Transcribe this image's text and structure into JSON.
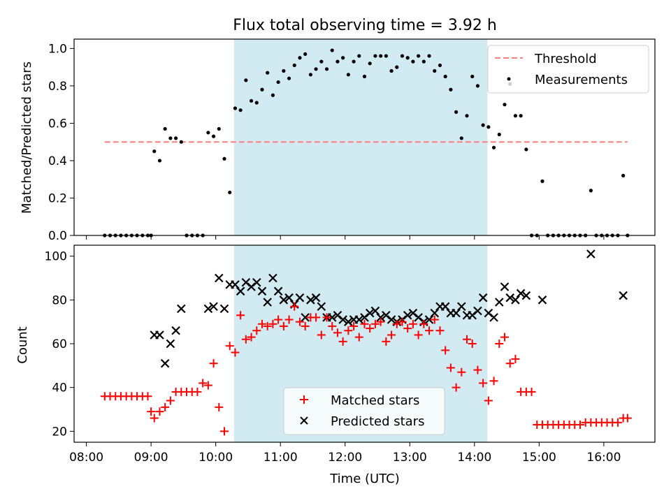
{
  "title": "Flux total observing time = 3.92 h",
  "colors": {
    "shade": "#add8e6",
    "threshold": "#ff7f7f",
    "measurement": "#000000",
    "matched": "#ff0000",
    "predicted": "#000000"
  },
  "chart_data": [
    {
      "type": "scatter",
      "name": "ratio-panel",
      "ylabel": "Matched/Predicted stars",
      "xlim": [
        7.81,
        16.79
      ],
      "ylim": [
        0,
        1.05
      ],
      "yticks": [
        0.0,
        0.2,
        0.4,
        0.6,
        0.8,
        1.0
      ],
      "ytick_labels": [
        "0.0",
        "0.2",
        "0.4",
        "0.6",
        "0.8",
        "1.0"
      ],
      "shaded_span": [
        "10:17",
        "14:12"
      ],
      "legend_position": "top-right",
      "threshold": {
        "name": "Threshold",
        "x": [
          "08:17",
          "16:22"
        ],
        "y": 0.5,
        "style": "dashed"
      },
      "series": [
        {
          "name": "Measurements",
          "marker": "dot",
          "x": [
            "08:17",
            "08:22",
            "08:27",
            "08:32",
            "08:37",
            "08:42",
            "08:47",
            "08:52",
            "08:57",
            "09:00",
            "09:03",
            "09:08",
            "09:13",
            "09:18",
            "09:23",
            "09:28",
            "09:33",
            "09:38",
            "09:43",
            "09:48",
            "09:53",
            "09:58",
            "10:03",
            "10:08",
            "10:13",
            "10:18",
            "10:23",
            "10:28",
            "10:33",
            "10:38",
            "10:43",
            "10:48",
            "10:53",
            "10:58",
            "11:03",
            "11:08",
            "11:13",
            "11:18",
            "11:23",
            "11:28",
            "11:33",
            "11:38",
            "11:43",
            "11:48",
            "11:53",
            "11:58",
            "12:03",
            "12:08",
            "12:13",
            "12:18",
            "12:23",
            "12:28",
            "12:33",
            "12:38",
            "12:43",
            "12:48",
            "12:53",
            "12:58",
            "13:03",
            "13:08",
            "13:13",
            "13:18",
            "13:23",
            "13:28",
            "13:33",
            "13:38",
            "13:43",
            "13:48",
            "13:53",
            "13:58",
            "14:03",
            "14:08",
            "14:13",
            "14:18",
            "14:23",
            "14:28",
            "14:33",
            "14:38",
            "14:43",
            "14:48",
            "14:53",
            "14:58",
            "15:03",
            "15:08",
            "15:13",
            "15:18",
            "15:23",
            "15:28",
            "15:33",
            "15:38",
            "15:43",
            "15:48",
            "15:53",
            "15:58",
            "16:03",
            "16:08",
            "16:13",
            "16:18",
            "16:22"
          ],
          "y": [
            0,
            0,
            0,
            0,
            0,
            0,
            0,
            0,
            0,
            0,
            0.45,
            0.4,
            0.57,
            0.52,
            0.52,
            0.5,
            0,
            0,
            0,
            0,
            0.55,
            0.53,
            0.57,
            0.41,
            0.23,
            0.68,
            0.67,
            0.83,
            0.72,
            0.71,
            0.78,
            0.87,
            0.75,
            0.82,
            0.88,
            0.84,
            0.91,
            0.95,
            0.97,
            0.86,
            0.89,
            0.93,
            0.89,
            0.99,
            0.93,
            0.95,
            0.86,
            0.93,
            0.96,
            0.85,
            0.92,
            0.96,
            0.96,
            0.96,
            0.88,
            0.9,
            0.96,
            0.95,
            0.93,
            0.96,
            0.93,
            0.96,
            0.88,
            0.91,
            0.85,
            0.78,
            0.66,
            0.52,
            0.64,
            0.85,
            0.8,
            0.59,
            0.58,
            0.47,
            0.54,
            0.7,
            0.81,
            0.64,
            0.64,
            0.46,
            0,
            0,
            0.29,
            0,
            0,
            0,
            0,
            0,
            0,
            0,
            0,
            0.24,
            0,
            0,
            0,
            0,
            0,
            0.32,
            0
          ]
        }
      ]
    },
    {
      "type": "scatter",
      "name": "count-panel",
      "xlabel": "Time (UTC)",
      "ylabel": "Count",
      "xlim": [
        7.81,
        16.79
      ],
      "ylim": [
        15,
        105
      ],
      "yticks": [
        20,
        40,
        60,
        80,
        100
      ],
      "ytick_labels": [
        "20",
        "40",
        "60",
        "80",
        "100"
      ],
      "xticks": [
        "08:00",
        "09:00",
        "10:00",
        "11:00",
        "12:00",
        "13:00",
        "14:00",
        "15:00",
        "16:00"
      ],
      "shaded_span": [
        "10:17",
        "14:12"
      ],
      "legend_position": "bottom-center",
      "series": [
        {
          "name": "Matched stars",
          "marker": "plus",
          "x": [
            "08:17",
            "08:22",
            "08:27",
            "08:32",
            "08:37",
            "08:42",
            "08:47",
            "08:52",
            "08:57",
            "09:00",
            "09:03",
            "09:08",
            "09:13",
            "09:18",
            "09:23",
            "09:28",
            "09:33",
            "09:38",
            "09:43",
            "09:48",
            "09:53",
            "09:58",
            "10:03",
            "10:08",
            "10:13",
            "10:18",
            "10:23",
            "10:28",
            "10:33",
            "10:38",
            "10:43",
            "10:48",
            "10:53",
            "10:58",
            "11:03",
            "11:08",
            "11:13",
            "11:18",
            "11:23",
            "11:28",
            "11:33",
            "11:38",
            "11:43",
            "11:48",
            "11:53",
            "11:58",
            "12:03",
            "12:08",
            "12:13",
            "12:18",
            "12:23",
            "12:28",
            "12:33",
            "12:38",
            "12:43",
            "12:48",
            "12:53",
            "12:58",
            "13:03",
            "13:08",
            "13:13",
            "13:18",
            "13:23",
            "13:28",
            "13:33",
            "13:38",
            "13:43",
            "13:48",
            "13:53",
            "13:58",
            "14:03",
            "14:08",
            "14:13",
            "14:18",
            "14:23",
            "14:28",
            "14:33",
            "14:38",
            "14:43",
            "14:48",
            "14:53",
            "14:58",
            "15:03",
            "15:08",
            "15:13",
            "15:18",
            "15:23",
            "15:28",
            "15:33",
            "15:38",
            "15:43",
            "15:48",
            "15:53",
            "15:58",
            "16:03",
            "16:08",
            "16:13",
            "16:18",
            "16:22"
          ],
          "y": [
            36,
            36,
            36,
            36,
            36,
            36,
            36,
            36,
            36,
            29,
            26,
            29,
            31,
            34,
            38,
            38,
            38,
            38,
            38,
            42,
            41,
            51,
            31,
            20,
            59,
            56,
            73,
            62,
            63,
            66,
            69,
            68,
            69,
            71,
            68,
            71,
            77,
            70,
            68,
            72,
            72,
            64,
            72,
            68,
            65,
            61,
            66,
            68,
            63,
            69,
            67,
            69,
            70,
            61,
            64,
            69,
            70,
            67,
            69,
            64,
            69,
            66,
            71,
            66,
            57,
            49,
            40,
            47,
            62,
            60,
            48,
            42,
            34,
            43,
            60,
            63,
            51,
            53,
            38,
            38,
            38,
            23,
            23,
            23,
            23,
            23,
            23,
            23,
            23,
            23,
            24,
            24,
            24,
            24,
            24,
            24,
            24,
            26,
            26
          ]
        },
        {
          "name": "Predicted stars",
          "marker": "x",
          "x": [
            "09:03",
            "09:08",
            "09:13",
            "09:18",
            "09:23",
            "09:28",
            "09:53",
            "09:58",
            "10:03",
            "10:08",
            "10:13",
            "10:18",
            "10:23",
            "10:28",
            "10:33",
            "10:38",
            "10:43",
            "10:48",
            "10:53",
            "10:58",
            "11:03",
            "11:08",
            "11:13",
            "11:18",
            "11:23",
            "11:28",
            "11:33",
            "11:38",
            "11:43",
            "11:48",
            "11:53",
            "11:58",
            "12:03",
            "12:08",
            "12:13",
            "12:18",
            "12:23",
            "12:28",
            "12:33",
            "12:38",
            "12:43",
            "12:48",
            "12:53",
            "12:58",
            "13:03",
            "13:08",
            "13:13",
            "13:18",
            "13:23",
            "13:28",
            "13:33",
            "13:38",
            "13:43",
            "13:48",
            "13:53",
            "13:58",
            "14:03",
            "14:08",
            "14:13",
            "14:18",
            "14:23",
            "14:28",
            "14:33",
            "14:38",
            "14:43",
            "14:48",
            "15:03",
            "15:48",
            "16:18"
          ],
          "y": [
            64,
            64,
            51,
            60,
            66,
            76,
            76,
            77,
            90,
            76,
            87,
            87,
            84,
            88,
            86,
            88,
            84,
            79,
            90,
            84,
            80,
            81,
            78,
            81,
            72,
            80,
            81,
            77,
            72,
            72,
            73,
            71,
            70,
            71,
            71,
            72,
            74,
            75,
            72,
            73,
            71,
            70,
            71,
            73,
            74,
            72,
            70,
            71,
            74,
            77,
            77,
            74,
            74,
            77,
            73,
            73,
            75,
            81,
            74,
            72,
            79,
            86,
            81,
            80,
            83,
            82,
            80,
            101,
            82
          ]
        }
      ]
    }
  ]
}
